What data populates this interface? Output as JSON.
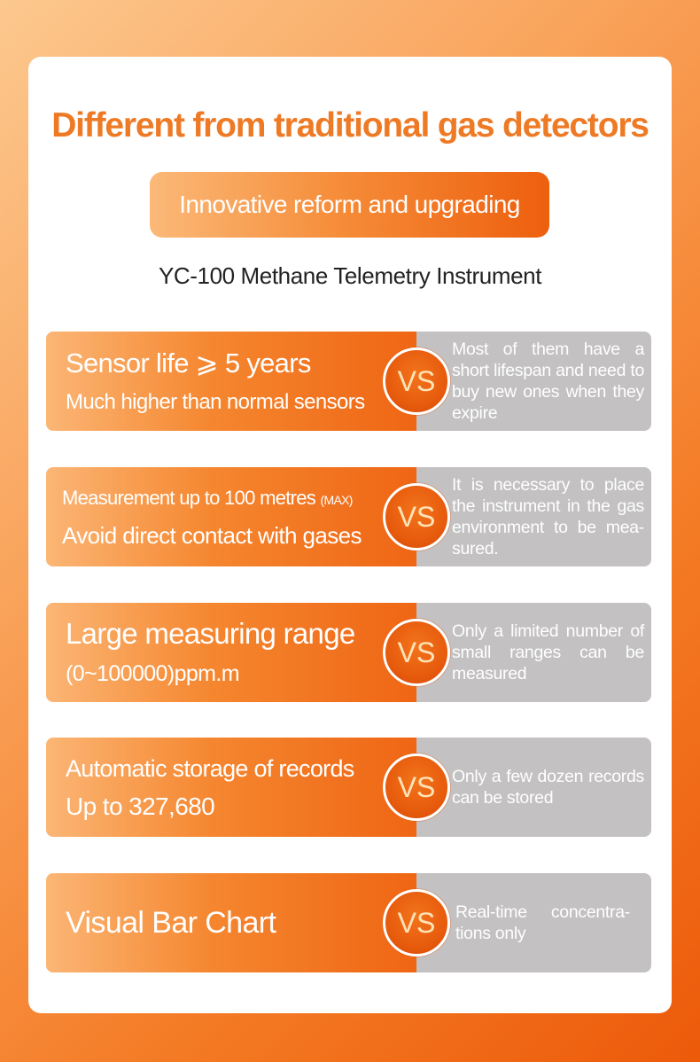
{
  "title": "Different from traditional gas detectors",
  "badge": "Innovative reform and upgrading",
  "subtitle": "YC-100 Methane Telemetry Instrument",
  "vs_label": "VS",
  "rows": [
    {
      "line1": "Sensor life ⩾ 5 years",
      "line2": "Much higher than normal sensors",
      "right": "Most of them have a short lifespan and need to buy new ones when they expire"
    },
    {
      "line1": "Measurement up to 100 metres ",
      "line1_small": "(MAX)",
      "line2": "Avoid direct contact with gases",
      "right": "It is necessary to place the instrument in the gas environment to be mea-sured."
    },
    {
      "line1": "Large measuring range",
      "line2": "(0~100000)ppm.m",
      "right": "Only a limited number of small ranges can be measured"
    },
    {
      "line1": "Automatic storage of records",
      "line2": "Up to 327,680",
      "right": "Only a few dozen records can be stored"
    },
    {
      "single": "Visual Bar Chart",
      "right": "Real-time concentra-tions only"
    }
  ]
}
